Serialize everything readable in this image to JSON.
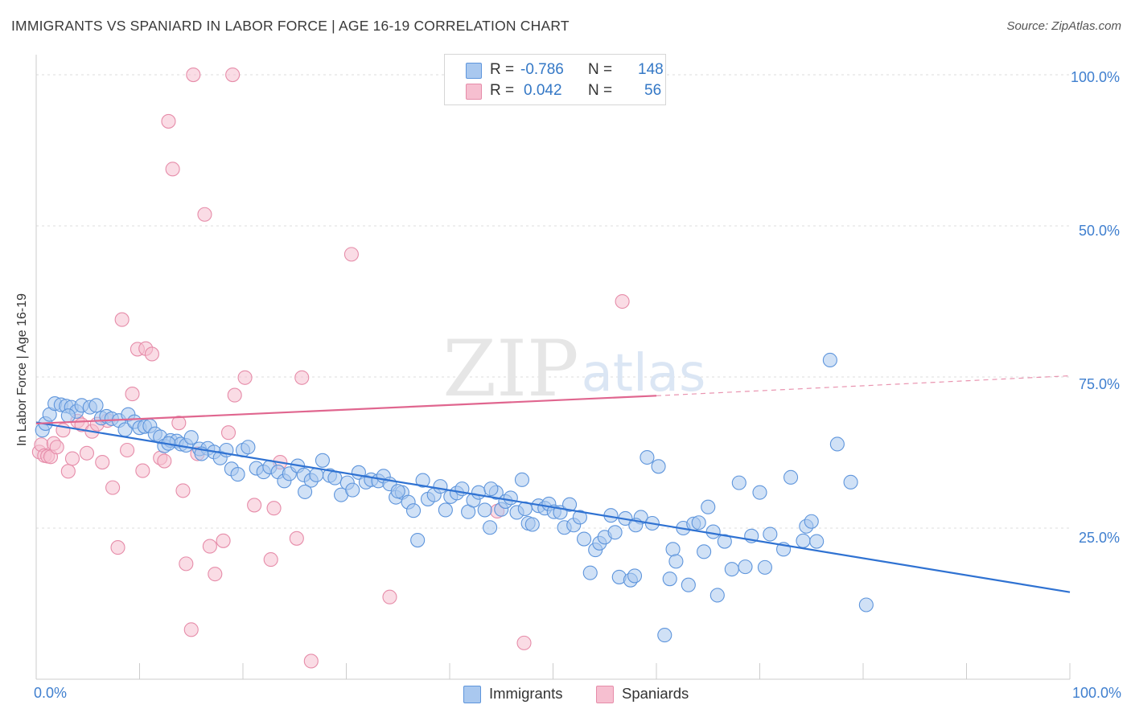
{
  "header": {
    "title": "IMMIGRANTS VS SPANIARD IN LABOR FORCE | AGE 16-19 CORRELATION CHART",
    "source": "Source: ZipAtlas.com"
  },
  "watermark": {
    "zip": "ZIP",
    "atlas": "atlas"
  },
  "legend": {
    "r_label": "R =",
    "n_label": "N =",
    "immigrants": {
      "r": "-0.786",
      "n": "148"
    },
    "spaniards": {
      "r": "0.042",
      "n": "56"
    }
  },
  "colors": {
    "immigrants_fill": "#a9c8ef",
    "immigrants_stroke": "#5e95dc",
    "immigrants_line": "#2f72d2",
    "spaniards_fill": "#f6bfd0",
    "spaniards_stroke": "#e68ca9",
    "spaniards_line": "#e0668f",
    "tick_label": "#3f7fcf",
    "grid": "#dddddd"
  },
  "chart_data": {
    "type": "scatter",
    "title": "IMMIGRANTS VS SPANIARD IN LABOR FORCE | AGE 16-19 CORRELATION CHART",
    "ylabel": "In Labor Force | Age 16-19",
    "xlabel": "",
    "xlim": [
      0,
      100
    ],
    "ylim": [
      0,
      102
    ],
    "x_tick_labels": [
      "0.0%",
      "100.0%"
    ],
    "y_tick_labels": [
      "25.0%",
      "50.0%",
      "75.0%",
      "100.0%"
    ],
    "y_ticks": [
      25,
      50,
      75,
      100
    ],
    "grid": true,
    "legend_position": "top-center",
    "series": [
      {
        "name": "Immigrants",
        "r": -0.786,
        "n": 148,
        "trend": {
          "x": [
            0,
            100
          ],
          "y": [
            42.5,
            14.4
          ]
        },
        "points": [
          [
            0.6,
            41.2
          ],
          [
            0.9,
            42.3
          ],
          [
            1.3,
            43.8
          ],
          [
            1.8,
            45.6
          ],
          [
            2.4,
            45.4
          ],
          [
            2.9,
            45.2
          ],
          [
            3.4,
            45.0
          ],
          [
            3.9,
            44.3
          ],
          [
            4.4,
            45.3
          ],
          [
            5.2,
            45.0
          ],
          [
            5.8,
            45.3
          ],
          [
            6.3,
            43.2
          ],
          [
            6.8,
            43.5
          ],
          [
            7.3,
            43.1
          ],
          [
            8.0,
            42.8
          ],
          [
            8.6,
            41.3
          ],
          [
            8.9,
            43.8
          ],
          [
            9.5,
            42.6
          ],
          [
            10.0,
            41.6
          ],
          [
            10.5,
            41.8
          ],
          [
            11.0,
            41.9
          ],
          [
            11.5,
            40.6
          ],
          [
            12.0,
            40.1
          ],
          [
            12.4,
            38.6
          ],
          [
            13.0,
            39.5
          ],
          [
            13.6,
            39.4
          ],
          [
            14.0,
            38.9
          ],
          [
            14.5,
            38.7
          ],
          [
            15.0,
            40.0
          ],
          [
            15.8,
            38.1
          ],
          [
            16.6,
            38.2
          ],
          [
            17.2,
            37.6
          ],
          [
            17.8,
            36.6
          ],
          [
            18.4,
            37.9
          ],
          [
            18.9,
            34.8
          ],
          [
            19.5,
            33.9
          ],
          [
            20.0,
            37.9
          ],
          [
            20.5,
            38.4
          ],
          [
            21.3,
            34.9
          ],
          [
            22.0,
            34.3
          ],
          [
            22.6,
            35.1
          ],
          [
            23.4,
            34.3
          ],
          [
            24.0,
            32.8
          ],
          [
            24.5,
            34.0
          ],
          [
            25.3,
            35.3
          ],
          [
            25.9,
            33.8
          ],
          [
            26.6,
            32.9
          ],
          [
            27.1,
            33.8
          ],
          [
            27.7,
            36.2
          ],
          [
            28.4,
            33.7
          ],
          [
            28.9,
            33.3
          ],
          [
            29.5,
            30.5
          ],
          [
            30.1,
            32.5
          ],
          [
            30.6,
            31.3
          ],
          [
            31.2,
            34.2
          ],
          [
            31.9,
            32.6
          ],
          [
            32.4,
            33.0
          ],
          [
            33.1,
            32.8
          ],
          [
            33.6,
            33.6
          ],
          [
            34.2,
            32.3
          ],
          [
            34.8,
            30.1
          ],
          [
            35.4,
            30.9
          ],
          [
            36.0,
            29.3
          ],
          [
            36.5,
            27.9
          ],
          [
            36.9,
            23.0
          ],
          [
            37.4,
            32.9
          ],
          [
            37.9,
            29.8
          ],
          [
            38.5,
            30.5
          ],
          [
            39.1,
            31.9
          ],
          [
            39.6,
            28.0
          ],
          [
            40.1,
            30.2
          ],
          [
            40.7,
            30.8
          ],
          [
            41.2,
            31.5
          ],
          [
            41.8,
            27.7
          ],
          [
            42.3,
            29.6
          ],
          [
            42.8,
            30.9
          ],
          [
            43.4,
            28.0
          ],
          [
            43.9,
            25.1
          ],
          [
            44.5,
            30.9
          ],
          [
            45.0,
            28.1
          ],
          [
            45.4,
            29.4
          ],
          [
            45.9,
            30.0
          ],
          [
            46.5,
            27.6
          ],
          [
            47.0,
            33.0
          ],
          [
            47.6,
            25.8
          ],
          [
            48.0,
            25.6
          ],
          [
            48.6,
            28.7
          ],
          [
            49.2,
            28.3
          ],
          [
            49.6,
            29.0
          ],
          [
            50.1,
            27.7
          ],
          [
            50.7,
            27.6
          ],
          [
            51.1,
            25.1
          ],
          [
            51.6,
            28.9
          ],
          [
            52.0,
            25.5
          ],
          [
            52.6,
            26.8
          ],
          [
            53.0,
            23.2
          ],
          [
            53.6,
            17.6
          ],
          [
            54.1,
            21.4
          ],
          [
            54.5,
            22.5
          ],
          [
            55.0,
            23.5
          ],
          [
            55.6,
            27.1
          ],
          [
            56.0,
            24.3
          ],
          [
            56.4,
            16.9
          ],
          [
            57.0,
            26.6
          ],
          [
            57.5,
            16.4
          ],
          [
            57.9,
            17.1
          ],
          [
            58.5,
            26.8
          ],
          [
            59.1,
            36.7
          ],
          [
            59.6,
            25.8
          ],
          [
            60.2,
            35.2
          ],
          [
            60.8,
            7.3
          ],
          [
            61.3,
            16.6
          ],
          [
            61.6,
            21.5
          ],
          [
            61.9,
            19.5
          ],
          [
            62.6,
            25.0
          ],
          [
            63.1,
            15.6
          ],
          [
            63.6,
            25.7
          ],
          [
            64.1,
            25.9
          ],
          [
            64.6,
            21.1
          ],
          [
            65.0,
            28.5
          ],
          [
            65.5,
            24.4
          ],
          [
            65.9,
            13.9
          ],
          [
            66.6,
            22.8
          ],
          [
            67.3,
            18.2
          ],
          [
            68.0,
            32.5
          ],
          [
            68.6,
            18.6
          ],
          [
            69.2,
            23.7
          ],
          [
            70.0,
            30.9
          ],
          [
            70.5,
            18.5
          ],
          [
            71.0,
            24.0
          ],
          [
            72.3,
            21.5
          ],
          [
            73.0,
            33.4
          ],
          [
            74.2,
            22.9
          ],
          [
            74.5,
            25.3
          ],
          [
            75.0,
            26.1
          ],
          [
            75.5,
            22.8
          ],
          [
            76.8,
            52.8
          ],
          [
            77.5,
            38.9
          ],
          [
            78.8,
            32.6
          ],
          [
            80.3,
            12.3
          ],
          [
            12.8,
            39.0
          ],
          [
            26.0,
            31.0
          ],
          [
            44.0,
            31.5
          ],
          [
            58.0,
            25.5
          ],
          [
            3.1,
            43.6
          ],
          [
            16.0,
            37.3
          ],
          [
            35.0,
            31.1
          ],
          [
            47.3,
            28.2
          ]
        ]
      },
      {
        "name": "Spaniards",
        "r": 0.042,
        "n": 56,
        "trend": {
          "x": [
            0,
            60
          ],
          "y": [
            42.3,
            46.9
          ]
        },
        "trend_dashed": {
          "x": [
            60,
            100
          ],
          "y": [
            46.9,
            50.2
          ]
        },
        "points": [
          [
            0.3,
            37.6
          ],
          [
            0.5,
            38.8
          ],
          [
            0.8,
            37.0
          ],
          [
            1.1,
            36.9
          ],
          [
            1.4,
            36.8
          ],
          [
            1.7,
            39.0
          ],
          [
            2.0,
            38.4
          ],
          [
            2.6,
            41.2
          ],
          [
            3.1,
            34.4
          ],
          [
            3.5,
            36.5
          ],
          [
            4.0,
            42.7
          ],
          [
            4.4,
            42.1
          ],
          [
            4.9,
            37.4
          ],
          [
            5.4,
            41.0
          ],
          [
            5.9,
            42.2
          ],
          [
            6.4,
            35.9
          ],
          [
            6.9,
            42.8
          ],
          [
            7.4,
            31.7
          ],
          [
            7.9,
            21.8
          ],
          [
            8.3,
            59.5
          ],
          [
            8.8,
            37.9
          ],
          [
            9.3,
            47.2
          ],
          [
            9.8,
            54.6
          ],
          [
            10.3,
            34.5
          ],
          [
            10.6,
            54.7
          ],
          [
            11.2,
            53.8
          ],
          [
            12.0,
            36.6
          ],
          [
            12.4,
            36.1
          ],
          [
            12.8,
            92.3
          ],
          [
            13.2,
            84.4
          ],
          [
            13.8,
            42.4
          ],
          [
            14.2,
            31.2
          ],
          [
            14.5,
            19.1
          ],
          [
            15.0,
            8.2
          ],
          [
            15.6,
            37.3
          ],
          [
            16.3,
            76.9
          ],
          [
            16.8,
            22.0
          ],
          [
            17.3,
            17.4
          ],
          [
            18.1,
            22.9
          ],
          [
            18.6,
            40.8
          ],
          [
            19.2,
            47.0
          ],
          [
            20.2,
            49.9
          ],
          [
            21.1,
            28.8
          ],
          [
            22.7,
            19.8
          ],
          [
            23.0,
            28.3
          ],
          [
            23.6,
            35.9
          ],
          [
            25.2,
            23.3
          ],
          [
            25.7,
            49.9
          ],
          [
            26.6,
            3.0
          ],
          [
            30.5,
            70.3
          ],
          [
            34.2,
            13.6
          ],
          [
            44.6,
            27.8
          ],
          [
            47.2,
            6.0
          ],
          [
            56.7,
            62.5
          ],
          [
            15.2,
            100.0
          ],
          [
            19.0,
            100.0
          ]
        ]
      }
    ]
  }
}
